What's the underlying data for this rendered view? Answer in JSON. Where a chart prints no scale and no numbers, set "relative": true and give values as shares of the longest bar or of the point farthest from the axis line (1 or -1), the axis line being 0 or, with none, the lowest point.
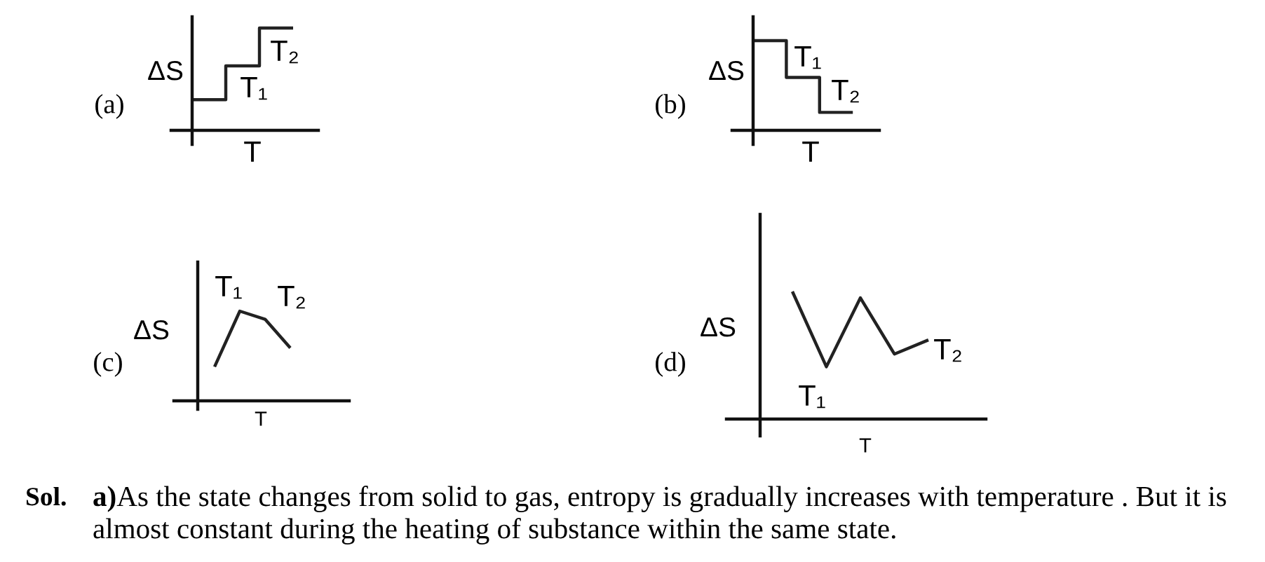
{
  "chart_data": [
    {
      "type": "step",
      "title": "(a)",
      "xlabel": "T",
      "ylabel": "ΔS",
      "relative": true,
      "categories": [
        null,
        null,
        null,
        null
      ],
      "series": [
        {
          "color": "#222222",
          "values": [
            0.3,
            0.63,
            1.0,
            1.0
          ]
        }
      ],
      "annotations": [
        "T₁",
        "T₂"
      ]
    },
    {
      "type": "step",
      "title": "(b)",
      "xlabel": "T",
      "ylabel": "ΔS",
      "relative": true,
      "categories": [
        null,
        null,
        null,
        null
      ],
      "series": [
        {
          "color": "#222222",
          "values": [
            1.0,
            0.59,
            0.2,
            0.2
          ]
        }
      ],
      "annotations": [
        "T₁",
        "T₂"
      ]
    },
    {
      "type": "line",
      "title": "(c)",
      "xlabel": "T",
      "ylabel": "ΔS",
      "relative": true,
      "categories": [
        null,
        null,
        null,
        null
      ],
      "series": [
        {
          "color": "#222222",
          "values": [
            0.38,
            1.0,
            0.91,
            0.59
          ]
        }
      ],
      "annotations": [
        "T₁",
        "T₂"
      ]
    },
    {
      "type": "line",
      "title": "(d)",
      "xlabel": "T",
      "ylabel": "ΔS",
      "relative": true,
      "categories": [
        null,
        null,
        null,
        null,
        null
      ],
      "series": [
        {
          "color": "#222222",
          "values": [
            1.0,
            0.41,
            0.95,
            0.51,
            0.62
          ]
        }
      ],
      "annotations": [
        "T₁",
        "T₂"
      ]
    },
    {
      "type": "other",
      "annotations": [
        "Sol.",
        "a)",
        "As the state changes from solid to gas, entropy is gradually increases with temperature . But it is",
        "almost constant during the heating of substance within the same state."
      ]
    }
  ]
}
